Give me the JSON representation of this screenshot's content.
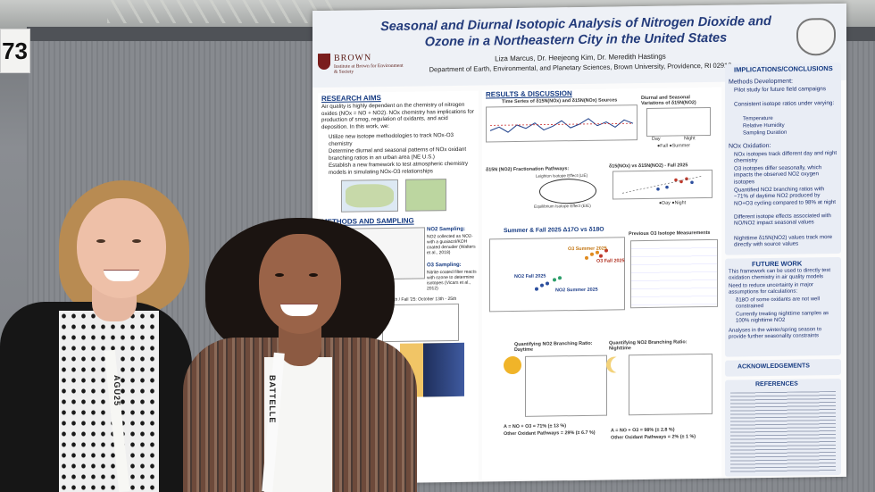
{
  "booth": {
    "number": "73"
  },
  "poster": {
    "title": "Seasonal and Diurnal Isotopic Analysis of Nitrogen Dioxide and Ozone in a Northeastern City in the United States",
    "authors": "Liza Marcus, Dr. Heejeong Kim, Dr. Meredith Hastings",
    "department": "Department of Earth, Environmental, and Planetary Sciences, Brown University, Providence, RI 02912",
    "institution": {
      "name": "BROWN",
      "subtitle": "Institute at Brown for Environment & Society"
    },
    "research_aims": {
      "heading": "RESEARCH AIMS",
      "intro": "Air quality is highly dependent on the chemistry of nitrogen oxides (NOx = NO + NO2). NOx chemistry has implications for production of smog, regulation of oxidants, and acid deposition. In this work, we:",
      "bullets": [
        "Utilize new isotope methodologies to track NOx-O3 chemistry",
        "Determine diurnal and seasonal patterns of NOx oxidant branching ratios in an urban area (NE U.S.)",
        "Establish a new framework to test atmospheric chemistry models in simulating NOx-O3 relationships"
      ]
    },
    "methods": {
      "heading": "METHODS AND SAMPLING",
      "no2_title": "NO2 Sampling:",
      "no2_text": "NO2 collected as NO2- with a guaiacol/KOH coated denuder (Walters et al., 2018)",
      "o3_title": "O3 Sampling:",
      "o3_text": "Nitrite-coated filter reacts with ozone to determine isotopes (Vicars et al., 2012)",
      "dates": "July 4th / Fall '25: October 13th - 25th"
    },
    "results": {
      "heading": "RESULTS & DISCUSSION",
      "ts_title": "Time Series of δ15N(NOx) and δ15N(NOx) Sources",
      "diurnal_title": "Diurnal and Seasonal Variations of δ15N(NO2)",
      "legend_day": "Day",
      "legend_night": "Night",
      "legend_season": "●Fall ●Summer",
      "pathways_title": "δ15N (NO2) Fractionation Pathways:",
      "eie_label": "Equilibrium Isotope Effect (EIE)",
      "lie_label": "Leighton Isotope Effect (LIE)",
      "vs_title": "δ15(NOx) vs δ15N(NO2) - Fall 2025",
      "vs_legend": "●Day ●Night",
      "summer_fall_title": "Summer & Fall 2025 Δ17O vs δ18O",
      "o3_summer": "O3 Summer 2025",
      "o3_fall": "O3 Fall 2025",
      "no2_fall": "NO2 Fall 2025",
      "no2_summer": "NO2 Summer 2025",
      "prev_title": "Previous O3 Isotope Measurements",
      "branch_day_title": "Quantifying NO2 Branching Ratio: Daytime",
      "branch_night_title": "Quantifying NO2 Branching Ratio: Nighttime",
      "day_eq": "A = NO + O3 = 71% (± 13 %)",
      "day_other": "Other Oxidant Pathways = 29% (± 6.7 %)",
      "night_eq": "A = NO + O3 = 98% (± 2.8 %)",
      "night_other": "Other Oxidant Pathways = 2% (± 1 %)"
    },
    "implications": {
      "heading": "IMPLICATIONS/CONCLUSIONS",
      "methods_dev": "Methods Development:",
      "pilot": "Pilot study for future field campaigns",
      "consistent": "Consistent isotope ratios under varying:",
      "varying": [
        "Temperature",
        "Relative Humidity",
        "Sampling Duration"
      ],
      "nox_oxidation": "NOx Oxidation:",
      "bullets": [
        "NOx isotopes track different day and night chemistry",
        "O3 isotopes differ seasonally, which impacts the observed NO2 oxygen isotopes",
        "Quantified NO2 branching ratios with ~71% of daytime NO2 produced by NO+O3 cycling compared to 98% at night",
        "Different isotope effects associated with NO/NO2 impact seasonal values",
        "Nighttime δ15N(NO2) values track more directly with source values"
      ]
    },
    "future": {
      "heading": "FUTURE WORK",
      "items": [
        "This framework can be used to directly test oxidation chemistry in air quality models",
        "Need to reduce uncertainty in major assumptions for calculations:",
        "δ18O of some oxidants are not well constrained",
        "Currently treating nighttime samples as 100% nighttime NO2",
        "Analyses in the winter/spring season to provide further seasonality constraints"
      ]
    },
    "ack": {
      "heading": "ACKNOWLEDGEMENTS"
    },
    "references": {
      "heading": "REFERENCES"
    }
  },
  "badges": {
    "text1": "BATTELLE",
    "text2": "AGU25"
  },
  "colors": {
    "title_blue": "#223a7a",
    "heading_blue": "#163b82",
    "brown_red": "#7a1d1d"
  }
}
